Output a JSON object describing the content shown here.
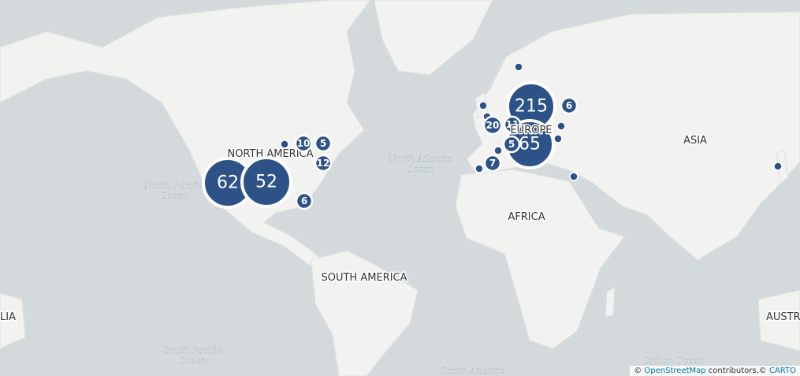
{
  "continent_labels": [
    "NORTH AMERICA",
    "EUROPE",
    "ASIA",
    "AFRICA",
    "SOUTH AMERICA",
    "LIA",
    "AUSTR"
  ],
  "ocean_labels": [
    [
      "North Atlantic",
      "Ocean"
    ],
    [
      "North Pacific",
      "Ocean"
    ],
    [
      "South Pacific",
      "Ocean"
    ],
    [
      "Indian Ocean"
    ],
    [
      "South Atlantic"
    ]
  ],
  "clusters": [
    62,
    52,
    215,
    65,
    20,
    11,
    10,
    5,
    12,
    6,
    6,
    5,
    7
  ],
  "attribution": [
    "© ",
    "OpenStreetMap",
    " contributors,© ",
    "CARTO"
  ]
}
